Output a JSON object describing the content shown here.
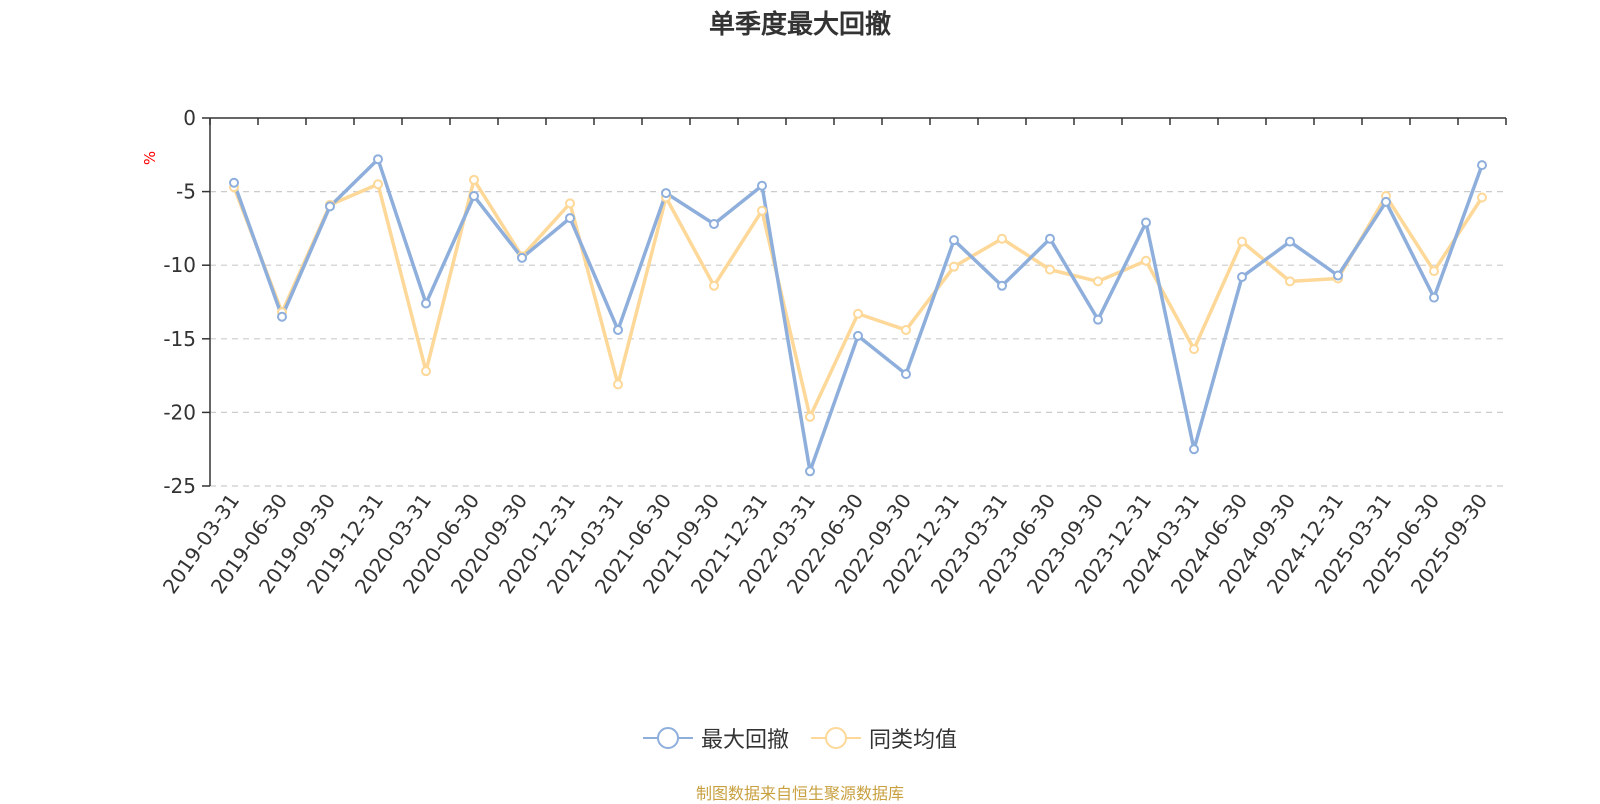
{
  "chart_data": {
    "type": "line",
    "title": "单季度最大回撤",
    "ylabel": "%",
    "ylim": [
      -25,
      0
    ],
    "yticks": [
      0,
      -5,
      -10,
      -15,
      -20,
      -25
    ],
    "grid": true,
    "legend_position": "bottom-center",
    "categories": [
      "2019-03-31",
      "2019-06-30",
      "2019-09-30",
      "2019-12-31",
      "2020-03-31",
      "2020-06-30",
      "2020-09-30",
      "2020-12-31",
      "2021-03-31",
      "2021-06-30",
      "2021-09-30",
      "2021-12-31",
      "2022-03-31",
      "2022-06-30",
      "2022-09-30",
      "2022-12-31",
      "2023-03-31",
      "2023-06-30",
      "2023-09-30",
      "2023-12-31",
      "2024-03-31",
      "2024-06-30",
      "2024-09-30",
      "2024-12-31",
      "2025-03-31",
      "2025-06-30",
      "2025-09-30"
    ],
    "series": [
      {
        "name": "最大回撤",
        "color": "#8eaedb",
        "values": [
          -4.4,
          -13.5,
          -6.0,
          -2.8,
          -12.6,
          -5.3,
          -9.5,
          -6.8,
          -14.4,
          -5.1,
          -7.2,
          -4.6,
          -24.0,
          -14.8,
          -17.4,
          -8.3,
          -11.4,
          -8.2,
          -13.7,
          -7.1,
          -22.5,
          -10.8,
          -8.4,
          -10.7,
          -5.7,
          -12.2,
          -3.2
        ]
      },
      {
        "name": "同类均值",
        "color": "#fdd898",
        "values": [
          -4.7,
          -13.2,
          -5.9,
          -4.5,
          -17.2,
          -4.2,
          -9.4,
          -5.8,
          -18.1,
          -5.4,
          -11.4,
          -6.3,
          -20.3,
          -13.3,
          -14.4,
          -10.1,
          -8.2,
          -10.3,
          -11.1,
          -9.7,
          -15.7,
          -8.4,
          -11.1,
          -10.9,
          -5.3,
          -10.4,
          -5.4
        ]
      }
    ]
  },
  "footer": {
    "source": "制图数据来自恒生聚源数据库",
    "source_color": "#c8a040"
  },
  "colors": {
    "axis": "#333333",
    "grid": "#cccccc",
    "unit_label": "#ff0000"
  }
}
